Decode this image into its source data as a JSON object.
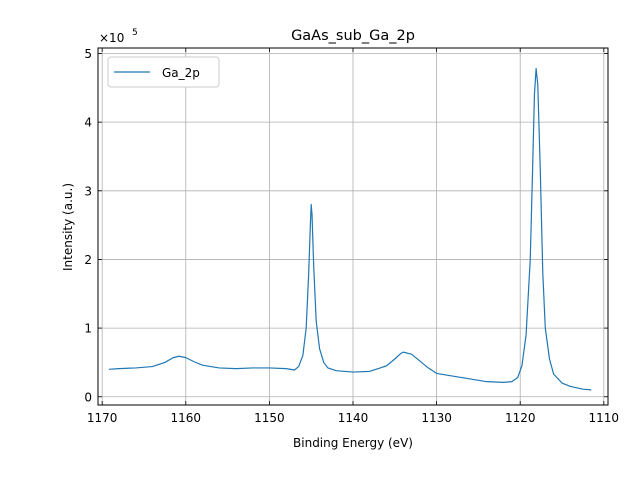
{
  "chart_data": {
    "type": "line",
    "title": "GaAs_sub_Ga_2p",
    "xlabel": "Binding Energy (eV)",
    "ylabel": "Intensity (a.u.)",
    "y_multiplier_label": "×10",
    "y_multiplier_exponent": "5",
    "x_reversed": true,
    "xlim": [
      1170.5,
      1109.5
    ],
    "ylim": [
      -12000,
      508000
    ],
    "grid": true,
    "legend_position": "top-left",
    "x_ticks": [
      1170,
      1160,
      1150,
      1140,
      1130,
      1120,
      1110
    ],
    "y_ticks": [
      0,
      100000,
      200000,
      300000,
      400000,
      500000
    ],
    "y_tick_labels": [
      "0",
      "1",
      "2",
      "3",
      "4",
      "5"
    ],
    "series": [
      {
        "name": "Ga_2p",
        "color": "#1f77b4",
        "points": [
          [
            1169.2,
            40000
          ],
          [
            1168,
            41000
          ],
          [
            1166,
            42000
          ],
          [
            1164,
            44000
          ],
          [
            1162.5,
            50000
          ],
          [
            1161.5,
            57000
          ],
          [
            1160.8,
            59000
          ],
          [
            1160,
            57000
          ],
          [
            1159,
            51000
          ],
          [
            1158,
            46000
          ],
          [
            1156,
            42000
          ],
          [
            1154,
            41000
          ],
          [
            1152,
            42000
          ],
          [
            1150,
            42000
          ],
          [
            1148,
            41000
          ],
          [
            1147,
            39000
          ],
          [
            1146.5,
            44000
          ],
          [
            1146,
            60000
          ],
          [
            1145.6,
            100000
          ],
          [
            1145.3,
            180000
          ],
          [
            1145.1,
            250000
          ],
          [
            1145.0,
            280000
          ],
          [
            1144.9,
            265000
          ],
          [
            1144.7,
            190000
          ],
          [
            1144.4,
            110000
          ],
          [
            1144,
            70000
          ],
          [
            1143.5,
            50000
          ],
          [
            1143,
            42000
          ],
          [
            1142,
            38000
          ],
          [
            1140,
            36000
          ],
          [
            1138,
            37000
          ],
          [
            1136,
            45000
          ],
          [
            1135,
            55000
          ],
          [
            1134.3,
            63000
          ],
          [
            1134,
            65000
          ],
          [
            1133,
            62000
          ],
          [
            1132,
            52000
          ],
          [
            1131,
            42000
          ],
          [
            1130,
            34000
          ],
          [
            1128,
            30000
          ],
          [
            1126,
            26000
          ],
          [
            1124,
            22000
          ],
          [
            1122,
            21000
          ],
          [
            1121,
            22000
          ],
          [
            1120.3,
            28000
          ],
          [
            1119.8,
            45000
          ],
          [
            1119.3,
            90000
          ],
          [
            1118.8,
            200000
          ],
          [
            1118.5,
            340000
          ],
          [
            1118.3,
            440000
          ],
          [
            1118.1,
            478000
          ],
          [
            1117.9,
            455000
          ],
          [
            1117.6,
            330000
          ],
          [
            1117.3,
            180000
          ],
          [
            1117.0,
            100000
          ],
          [
            1116.5,
            55000
          ],
          [
            1116,
            33000
          ],
          [
            1115,
            20000
          ],
          [
            1114,
            15000
          ],
          [
            1112.5,
            11000
          ],
          [
            1111.5,
            10000
          ]
        ]
      }
    ]
  }
}
